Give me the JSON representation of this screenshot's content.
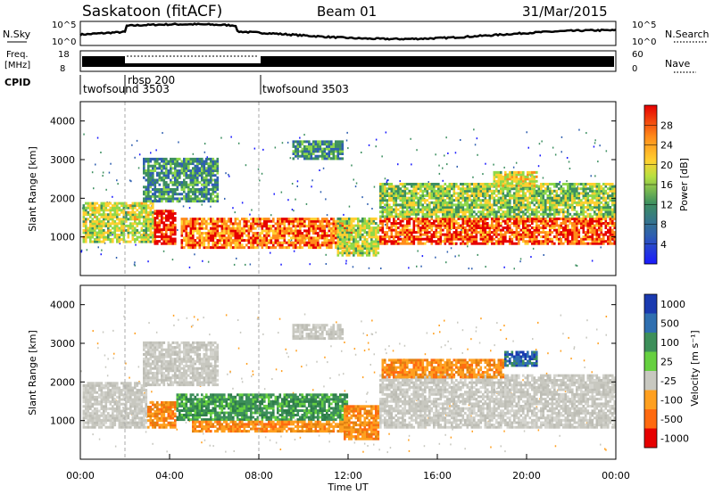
{
  "header": {
    "station": "Saskatoon (fitACF)",
    "beam": "Beam 01",
    "date": "31/Mar/2015"
  },
  "nsky_panel": {
    "left_label": "N.Sky",
    "left_ticks": [
      "10^5",
      "10^0"
    ],
    "right_ticks": [
      "10^5",
      "10^0"
    ],
    "right_label": "N.Search"
  },
  "freq_panel": {
    "left_label_1": "Freq.",
    "left_label_2": "[MHz]",
    "left_ticks": [
      "18",
      "8"
    ],
    "right_ticks": [
      "60",
      "0"
    ],
    "right_label": "Nave"
  },
  "cpid": {
    "label": "CPID",
    "segments": [
      {
        "name": "twofsound 3503",
        "start_hour": 0
      },
      {
        "name": "rbsp 200",
        "start_hour": 2
      },
      {
        "name": "twofsound 3503",
        "start_hour": 8
      }
    ]
  },
  "chart_data": [
    {
      "type": "heatmap",
      "name": "Power",
      "ylabel": "Slant Range [km]",
      "xlabel": "",
      "xlim": [
        0,
        24
      ],
      "ylim": [
        0,
        4500
      ],
      "yticks": [
        1000,
        2000,
        3000,
        4000
      ],
      "colorbar_label": "Power [dB]",
      "colorbar_ticks": [
        "4",
        "8",
        "12",
        "16",
        "20",
        "24",
        "28"
      ],
      "colorbar_colors": [
        "#1a1aff",
        "#2f5fb0",
        "#3d8f60",
        "#8fd84a",
        "#ffd030",
        "#ff8c1a",
        "#e60000"
      ],
      "regions": [
        {
          "t0": 0.1,
          "t1": 3.3,
          "r0": 850,
          "r1": 1900,
          "level": 0.55
        },
        {
          "t0": 3.3,
          "t1": 4.3,
          "r0": 800,
          "r1": 1700,
          "level": 0.95
        },
        {
          "t0": 2.8,
          "t1": 6.2,
          "r0": 1900,
          "r1": 3050,
          "level": 0.35
        },
        {
          "t0": 4.5,
          "t1": 12.2,
          "r0": 700,
          "r1": 1500,
          "level": 0.8
        },
        {
          "t0": 9.5,
          "t1": 11.8,
          "r0": 3000,
          "r1": 3500,
          "level": 0.35
        },
        {
          "t0": 11.5,
          "t1": 13.4,
          "r0": 500,
          "r1": 1500,
          "level": 0.55
        },
        {
          "t0": 13.4,
          "t1": 24,
          "r0": 800,
          "r1": 1500,
          "level": 0.85
        },
        {
          "t0": 13.4,
          "t1": 24,
          "r0": 1500,
          "r1": 2400,
          "level": 0.5
        },
        {
          "t0": 18.5,
          "t1": 20.5,
          "r0": 2300,
          "r1": 2700,
          "level": 0.6
        }
      ]
    },
    {
      "type": "heatmap",
      "name": "Velocity",
      "ylabel": "Slant Range [km]",
      "xlabel": "Time UT",
      "xlim": [
        0,
        24
      ],
      "ylim": [
        0,
        4500
      ],
      "yticks": [
        1000,
        2000,
        3000,
        4000
      ],
      "xticks": [
        "00:00",
        "04:00",
        "08:00",
        "12:00",
        "16:00",
        "20:00",
        "00:00"
      ],
      "colorbar_label": "Velocity [m s⁻¹]",
      "colorbar_ticks": [
        "1000",
        "500",
        "100",
        "25",
        "-25",
        "-100",
        "-500",
        "-1000"
      ],
      "colorbar_colors": [
        "#1a3ab0",
        "#2f6fb0",
        "#3d8f5a",
        "#66d040",
        "#c8c8c0",
        "#ffa020",
        "#ff6a10",
        "#e60000"
      ],
      "regions": [
        {
          "t0": 0.1,
          "t1": 3.0,
          "r0": 800,
          "r1": 2000,
          "level": "gray"
        },
        {
          "t0": 3.0,
          "t1": 4.3,
          "r0": 800,
          "r1": 1500,
          "level": "orange"
        },
        {
          "t0": 2.8,
          "t1": 6.2,
          "r0": 1900,
          "r1": 3050,
          "level": "gray"
        },
        {
          "t0": 4.3,
          "t1": 12.0,
          "r0": 1000,
          "r1": 1700,
          "level": "green"
        },
        {
          "t0": 5.0,
          "t1": 12.0,
          "r0": 700,
          "r1": 1000,
          "level": "orange"
        },
        {
          "t0": 9.5,
          "t1": 11.8,
          "r0": 3100,
          "r1": 3500,
          "level": "gray"
        },
        {
          "t0": 11.8,
          "t1": 13.4,
          "r0": 500,
          "r1": 1400,
          "level": "orange"
        },
        {
          "t0": 13.4,
          "t1": 24,
          "r0": 800,
          "r1": 2200,
          "level": "gray"
        },
        {
          "t0": 13.5,
          "t1": 19.0,
          "r0": 2100,
          "r1": 2600,
          "level": "orange"
        },
        {
          "t0": 19.0,
          "t1": 20.5,
          "r0": 2400,
          "r1": 2800,
          "level": "blue"
        }
      ]
    }
  ]
}
